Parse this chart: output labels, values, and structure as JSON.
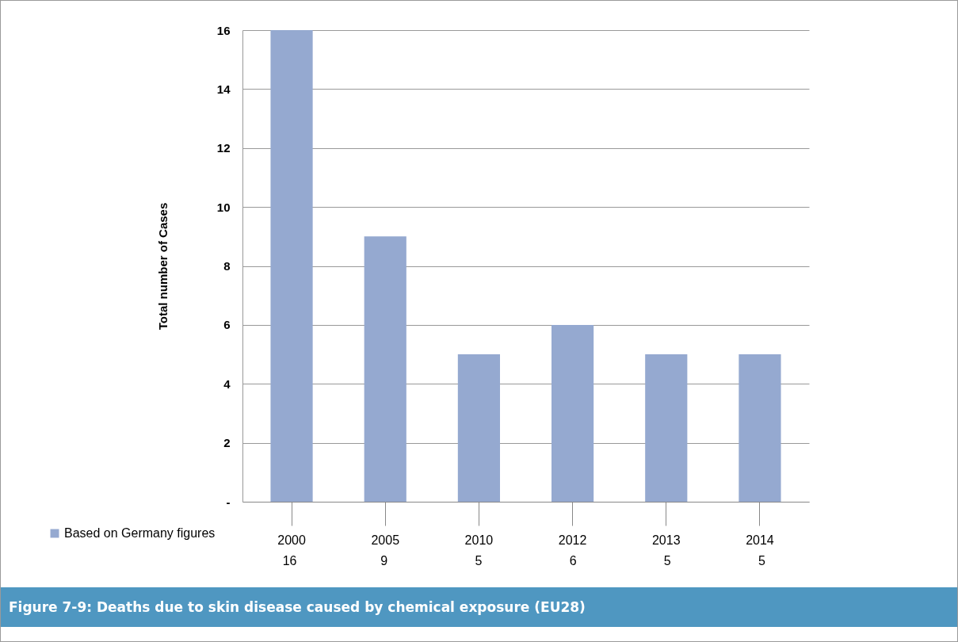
{
  "chart_data": {
    "type": "bar",
    "title": "Figure 7-9:  Deaths due to skin disease caused by chemical exposure (EU28)",
    "ylabel": "Total number of Cases",
    "categories": [
      "2000",
      "2005",
      "2010",
      "2012",
      "2013",
      "2014"
    ],
    "series": [
      {
        "name": "Based on Germany figures",
        "color": "#95a9d0",
        "values": [
          16,
          9,
          5,
          6,
          5,
          5
        ]
      }
    ],
    "ylim": [
      0,
      16
    ],
    "yticks": [
      {
        "value": 0,
        "label": "-"
      },
      2,
      4,
      6,
      8,
      10,
      12,
      14,
      16
    ],
    "grid": "y",
    "data_labels": true,
    "legend": "bottom left"
  }
}
